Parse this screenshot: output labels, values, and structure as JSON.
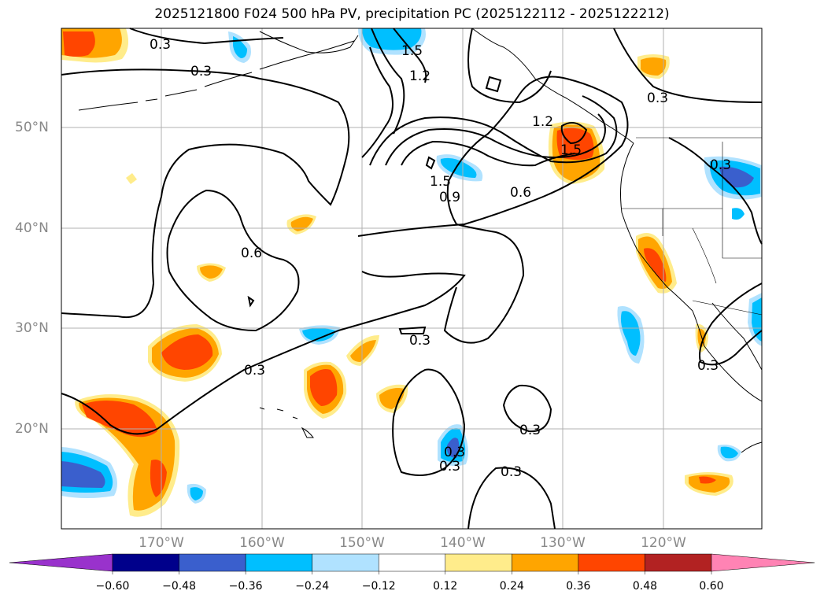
{
  "title": "2025121800 F024 500 hPa PV, precipitation PC (2025122112 - 2025122212)",
  "lat_labels": [
    "50°N",
    "40°N",
    "30°N",
    "20°N"
  ],
  "lon_labels": [
    "170°W",
    "160°W",
    "150°W",
    "140°W",
    "130°W",
    "120°W"
  ],
  "contour_labels": [
    "0.3",
    "0.3",
    "0.3",
    "1.5",
    "1.2",
    "1.2",
    "1.5",
    "1.5",
    "0.9",
    "0.6",
    "0.6",
    "0.3",
    "0.3",
    "0.3",
    "0.3",
    "0.3",
    "0.3",
    "0.3",
    "0.3"
  ],
  "colorbar": {
    "ticks": [
      "−0.60",
      "−0.48",
      "−0.36",
      "−0.24",
      "−0.12",
      "0.12",
      "0.24",
      "0.36",
      "0.48",
      "0.60"
    ],
    "colors": [
      "#9932cc",
      "#00008b",
      "#3a5fcd",
      "#00bfff",
      "#b0e2ff",
      "#ffffff",
      "#ffec8b",
      "#ffa500",
      "#ff4500",
      "#b22222",
      "#ff83b4"
    ]
  },
  "colors": {
    "land": "#000000",
    "grid": "#b0b0b0",
    "axis_label": "#888888"
  }
}
